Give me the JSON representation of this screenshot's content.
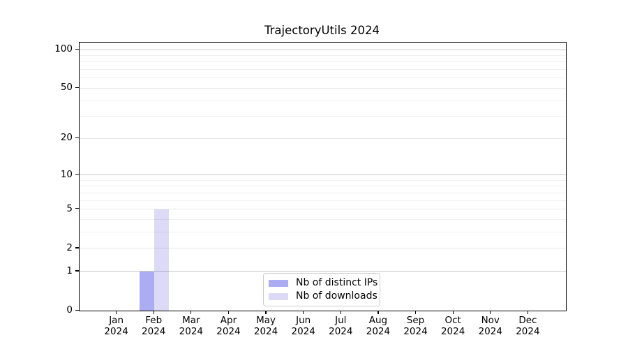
{
  "chart_data": {
    "type": "bar",
    "title": "TrajectoryUtils 2024",
    "scale": "log1p",
    "grid": "horizontal",
    "legend_position": "lower center",
    "xlabel": "",
    "ylabel": "",
    "ylim": [
      0,
      100
    ],
    "y_ticks": [
      0,
      1,
      2,
      5,
      10,
      20,
      50,
      100
    ],
    "y_decade_ticks": [
      1,
      10,
      100
    ],
    "y_minor_gridlines": [
      3,
      4,
      6,
      7,
      8,
      9,
      30,
      40,
      60,
      70,
      80,
      90
    ],
    "categories": [
      "Jan 2024",
      "Feb 2024",
      "Mar 2024",
      "Apr 2024",
      "May 2024",
      "Jun 2024",
      "Jul 2024",
      "Aug 2024",
      "Sep 2024",
      "Oct 2024",
      "Nov 2024",
      "Dec 2024"
    ],
    "series": [
      {
        "name": "Nb of distinct IPs",
        "color": "#acacf3",
        "values": [
          0,
          1,
          0,
          0,
          0,
          0,
          0,
          0,
          0,
          0,
          0,
          0
        ]
      },
      {
        "name": "Nb of downloads",
        "color": "#dbdbf8",
        "values": [
          0,
          5,
          0,
          0,
          0,
          0,
          0,
          0,
          0,
          0,
          0,
          0
        ]
      }
    ]
  },
  "colors": {
    "axis": "#000000",
    "decade_gridline": "#c9c9c9",
    "minor_gridline": "#ececec",
    "legend_border": "#cccccc",
    "background": "#ffffff"
  }
}
